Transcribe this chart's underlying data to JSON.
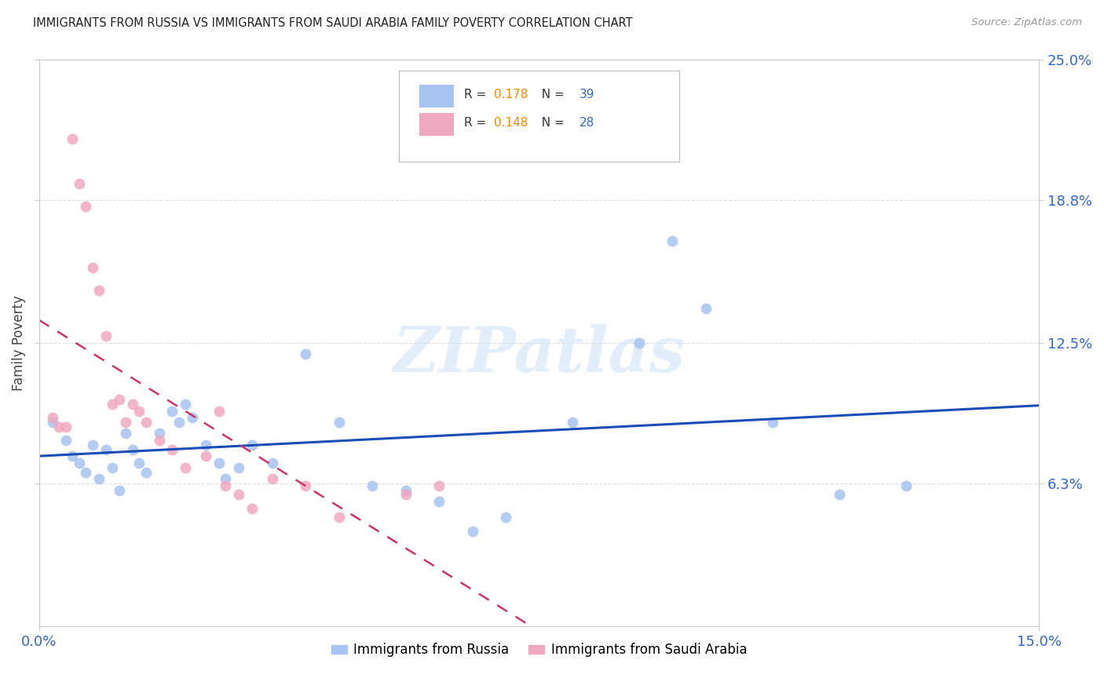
{
  "title": "IMMIGRANTS FROM RUSSIA VS IMMIGRANTS FROM SAUDI ARABIA FAMILY POVERTY CORRELATION CHART",
  "source": "Source: ZipAtlas.com",
  "xlabel_ticks": [
    "0.0%",
    "15.0%"
  ],
  "ylabel_ticks": [
    "6.3%",
    "12.5%",
    "18.8%",
    "25.0%"
  ],
  "ylabel_label": "Family Poverty",
  "xmin": 0.0,
  "xmax": 0.15,
  "ymin": 0.0,
  "ymax": 0.25,
  "ytick_vals": [
    0.063,
    0.125,
    0.188,
    0.25
  ],
  "xtick_vals": [
    0.0,
    0.15
  ],
  "legend_label_russia": "Immigrants from Russia",
  "legend_label_saudi": "Immigrants from Saudi Arabia",
  "R_russia": 0.178,
  "N_russia": 39,
  "R_saudi": 0.148,
  "N_saudi": 28,
  "russia_color": "#a8c4f0",
  "saudi_color": "#f0a8c0",
  "russia_line_color": "#1a4db5",
  "saudi_line_color": "#cc3366",
  "watermark_text": "ZIPatlas",
  "russia_x": [
    0.002,
    0.004,
    0.005,
    0.006,
    0.007,
    0.008,
    0.009,
    0.01,
    0.011,
    0.012,
    0.013,
    0.014,
    0.015,
    0.016,
    0.018,
    0.02,
    0.021,
    0.022,
    0.023,
    0.025,
    0.027,
    0.028,
    0.03,
    0.032,
    0.035,
    0.04,
    0.045,
    0.05,
    0.055,
    0.06,
    0.065,
    0.07,
    0.08,
    0.09,
    0.095,
    0.1,
    0.11,
    0.12,
    0.13
  ],
  "russia_y": [
    0.09,
    0.082,
    0.075,
    0.072,
    0.068,
    0.08,
    0.065,
    0.078,
    0.07,
    0.06,
    0.085,
    0.078,
    0.072,
    0.068,
    0.085,
    0.095,
    0.09,
    0.098,
    0.092,
    0.08,
    0.072,
    0.065,
    0.07,
    0.08,
    0.072,
    0.12,
    0.09,
    0.062,
    0.06,
    0.055,
    0.042,
    0.048,
    0.09,
    0.125,
    0.17,
    0.14,
    0.09,
    0.058,
    0.062
  ],
  "saudi_x": [
    0.002,
    0.003,
    0.004,
    0.005,
    0.006,
    0.007,
    0.008,
    0.009,
    0.01,
    0.011,
    0.012,
    0.013,
    0.014,
    0.015,
    0.016,
    0.018,
    0.02,
    0.022,
    0.025,
    0.027,
    0.028,
    0.03,
    0.032,
    0.035,
    0.04,
    0.045,
    0.055,
    0.06
  ],
  "saudi_y": [
    0.092,
    0.088,
    0.088,
    0.215,
    0.195,
    0.185,
    0.158,
    0.148,
    0.128,
    0.098,
    0.1,
    0.09,
    0.098,
    0.095,
    0.09,
    0.082,
    0.078,
    0.07,
    0.075,
    0.095,
    0.062,
    0.058,
    0.052,
    0.065,
    0.062,
    0.048,
    0.058,
    0.062
  ]
}
